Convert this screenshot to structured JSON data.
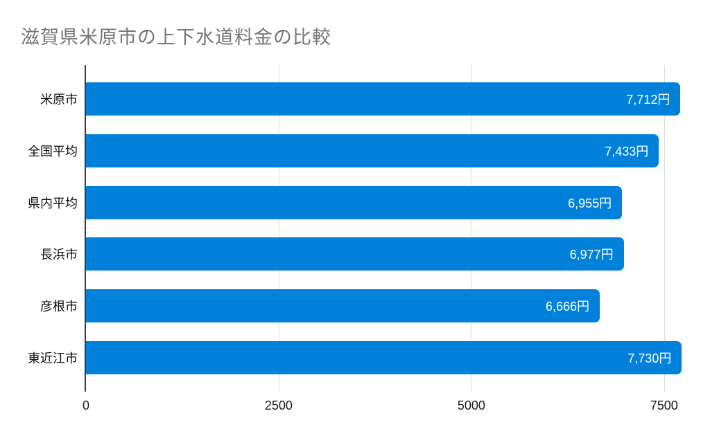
{
  "title": "滋賀県米原市の上下水道料金の比較",
  "colors": {
    "bar": "#0281DB",
    "title": "#757575",
    "axis_line": "#3b3b3b",
    "gridline": "#d9d9d9",
    "value_label": "#ffffff",
    "category_label": "#111111",
    "tick_label": "#1a1a1a",
    "background": "#ffffff"
  },
  "chart_data": {
    "type": "bar",
    "orientation": "horizontal",
    "title": "滋賀県米原市の上下水道料金の比較",
    "categories": [
      "米原市",
      "全国平均",
      "県内平均",
      "長浜市",
      "彦根市",
      "東近江市"
    ],
    "values": [
      7712,
      7433,
      6955,
      6977,
      6666,
      7730
    ],
    "value_labels": [
      "7,712円",
      "7,433円",
      "6,955円",
      "6,977円",
      "6,666円",
      "7,730円"
    ],
    "xlabel": "",
    "ylabel": "",
    "xlim": [
      0,
      7790
    ],
    "xticks": [
      0,
      2500,
      5000,
      7500
    ],
    "xtick_labels": [
      "0",
      "2500",
      "5000",
      "7500"
    ],
    "grid": true,
    "legend": false,
    "value_labels_position": "inside-end",
    "bar_color": "#0281DB"
  }
}
